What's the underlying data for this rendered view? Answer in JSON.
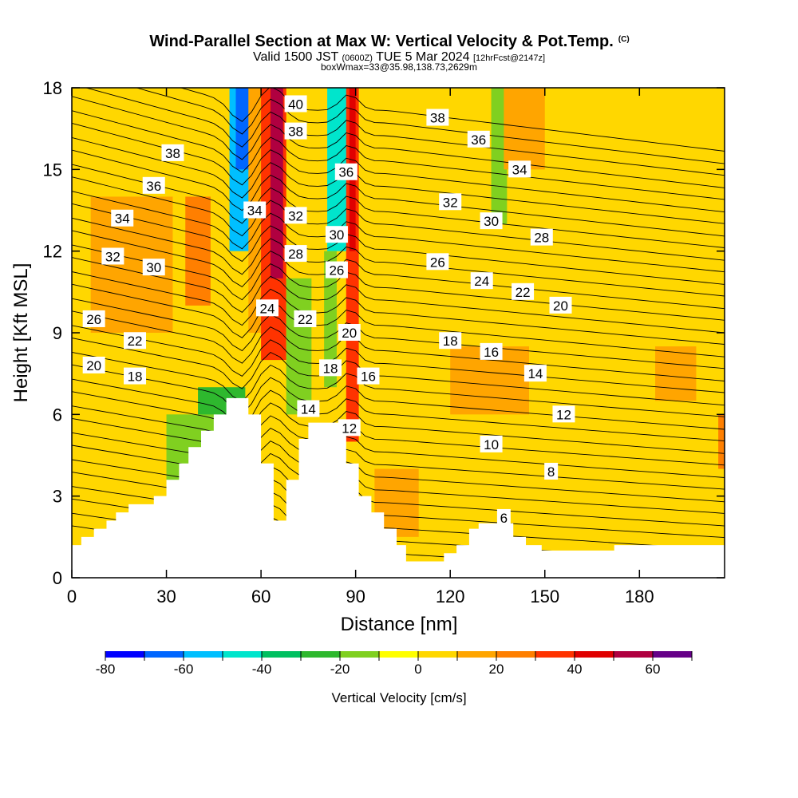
{
  "title": {
    "main": "Wind-Parallel Section at Max W: Vertical Velocity & Pot.Temp.",
    "copyright": "(C)",
    "valid_prefix": "Valid 1500 JST",
    "utc": "(0600Z)",
    "valid_date": "TUE 5 Mar 2024",
    "forecast": "[12hrFcst@2147z]",
    "box_info": "boxWmax=33@35.98,138.73,2629m"
  },
  "chart_data": {
    "type": "heatmap",
    "xlabel": "Distance [nm]",
    "ylabel": "Height [Kft MSL]",
    "xlim": [
      0,
      207
    ],
    "ylim": [
      0,
      18
    ],
    "xticks": [
      0,
      30,
      60,
      90,
      120,
      150,
      180
    ],
    "yticks": [
      0,
      3,
      6,
      9,
      12,
      15,
      18
    ],
    "colorbar": {
      "label": "Vertical Velocity [cm/s]",
      "levels": [
        -80,
        -70,
        -60,
        -50,
        -40,
        -30,
        -20,
        -10,
        0,
        10,
        20,
        30,
        40,
        50,
        60,
        70
      ],
      "colors": [
        "#0000ff",
        "#0066ff",
        "#00bfff",
        "#00e5cc",
        "#00c060",
        "#2eb82e",
        "#80d020",
        "#ffff00",
        "#ffd700",
        "#ffa500",
        "#ff7f00",
        "#ff3300",
        "#e00000",
        "#b00040",
        "#660088"
      ],
      "tick_values": [
        -80,
        -60,
        -40,
        -20,
        0,
        20,
        40,
        60
      ]
    },
    "terrain_profile": {
      "x": [
        0,
        3,
        3,
        7,
        7,
        11,
        11,
        14,
        14,
        18,
        18,
        26,
        26,
        30,
        30,
        34,
        34,
        37,
        37,
        41,
        41,
        45,
        45,
        49,
        49,
        53,
        53,
        56,
        56,
        60,
        60,
        64,
        64,
        68,
        68,
        72,
        72,
        75,
        75,
        80,
        80,
        87,
        87,
        91,
        91,
        95,
        95,
        99,
        99,
        103,
        103,
        106,
        106,
        110,
        110,
        118,
        118,
        122,
        122,
        126,
        126,
        129,
        129,
        133,
        133,
        140,
        140,
        144,
        144,
        149,
        149,
        153,
        153,
        172,
        172,
        207
      ],
      "y": [
        1.2,
        1.2,
        1.5,
        1.5,
        1.8,
        1.8,
        2.1,
        2.1,
        2.4,
        2.4,
        2.7,
        2.7,
        3.0,
        3.0,
        3.6,
        3.6,
        4.2,
        4.2,
        4.8,
        4.8,
        5.4,
        5.4,
        6.0,
        6.0,
        6.6,
        6.6,
        6.6,
        6.6,
        6.0,
        6.0,
        4.2,
        4.2,
        2.1,
        2.1,
        3.6,
        3.6,
        5.1,
        5.1,
        5.7,
        5.7,
        5.7,
        5.7,
        4.2,
        4.2,
        3.0,
        3.0,
        2.4,
        2.4,
        1.8,
        1.8,
        1.2,
        1.2,
        0.6,
        0.6,
        0.6,
        0.6,
        0.9,
        0.9,
        1.2,
        1.2,
        1.8,
        1.8,
        2.0,
        2.0,
        2.0,
        2.0,
        1.5,
        1.5,
        1.2,
        1.2,
        1.0,
        1.0,
        1.0,
        1.0,
        1.2,
        1.2
      ]
    },
    "velocity_bands": [
      {
        "x0": 50,
        "x1": 58,
        "y0": 12,
        "y1": 18,
        "value": -55
      },
      {
        "x0": 52,
        "x1": 57,
        "y0": 15,
        "y1": 18,
        "value": -62
      },
      {
        "x0": 56,
        "x1": 61,
        "y0": 9,
        "y1": 18,
        "value": 12
      },
      {
        "x0": 60,
        "x1": 68,
        "y0": 8,
        "y1": 18,
        "value": 35
      },
      {
        "x0": 63,
        "x1": 67,
        "y0": 11,
        "y1": 18,
        "value": 55
      },
      {
        "x0": 81,
        "x1": 88,
        "y0": 12,
        "y1": 18,
        "value": -45
      },
      {
        "x0": 80,
        "x1": 84,
        "y0": 7,
        "y1": 12,
        "value": -15
      },
      {
        "x0": 87,
        "x1": 91,
        "y0": 5,
        "y1": 18,
        "value": 30
      },
      {
        "x0": 88,
        "x1": 90,
        "y0": 12,
        "y1": 18,
        "value": 45
      },
      {
        "x0": 40,
        "x1": 55,
        "y0": 3,
        "y1": 7,
        "value": -30
      },
      {
        "x0": 30,
        "x1": 46,
        "y0": 2.7,
        "y1": 6,
        "value": -15
      },
      {
        "x0": 68,
        "x1": 76,
        "y0": 6,
        "y1": 11,
        "value": -12
      },
      {
        "x0": 133,
        "x1": 138,
        "y0": 13,
        "y1": 18,
        "value": -12
      },
      {
        "x0": 6,
        "x1": 32,
        "y0": 9,
        "y1": 14,
        "value": 12
      },
      {
        "x0": 36,
        "x1": 44,
        "y0": 10,
        "y1": 14,
        "value": 20
      },
      {
        "x0": 96,
        "x1": 110,
        "y0": 1.5,
        "y1": 4,
        "value": 15
      },
      {
        "x0": 120,
        "x1": 145,
        "y0": 6,
        "y1": 8.5,
        "value": 15
      },
      {
        "x0": 137,
        "x1": 150,
        "y0": 15,
        "y1": 18,
        "value": 18
      },
      {
        "x0": 205,
        "x1": 207,
        "y0": 3.5,
        "y1": 6,
        "value": 25
      },
      {
        "x0": 160,
        "x1": 207,
        "y0": 1.2,
        "y1": 4,
        "value": 5
      },
      {
        "x0": 185,
        "x1": 198,
        "y0": 6.5,
        "y1": 8.5,
        "value": 10
      }
    ],
    "isentropes": [
      6,
      8,
      10,
      12,
      14,
      16,
      18,
      20,
      22,
      24,
      26,
      28,
      30,
      32,
      34,
      36,
      38,
      40
    ],
    "contour_labels": [
      {
        "text": "40",
        "x": 71,
        "y": 17.4
      },
      {
        "text": "38",
        "x": 71,
        "y": 16.4
      },
      {
        "text": "38",
        "x": 32,
        "y": 15.6
      },
      {
        "text": "38",
        "x": 116,
        "y": 16.9
      },
      {
        "text": "36",
        "x": 26,
        "y": 14.4
      },
      {
        "text": "36",
        "x": 87,
        "y": 14.9
      },
      {
        "text": "36",
        "x": 129,
        "y": 16.1
      },
      {
        "text": "34",
        "x": 16,
        "y": 13.2
      },
      {
        "text": "34",
        "x": 58,
        "y": 13.5
      },
      {
        "text": "34",
        "x": 142,
        "y": 15.0
      },
      {
        "text": "32",
        "x": 13,
        "y": 11.8
      },
      {
        "text": "32",
        "x": 71,
        "y": 13.3
      },
      {
        "text": "32",
        "x": 120,
        "y": 13.8
      },
      {
        "text": "30",
        "x": 26,
        "y": 11.4
      },
      {
        "text": "30",
        "x": 84,
        "y": 12.6
      },
      {
        "text": "30",
        "x": 133,
        "y": 13.1
      },
      {
        "text": "28",
        "x": 71,
        "y": 11.9
      },
      {
        "text": "28",
        "x": 149,
        "y": 12.5
      },
      {
        "text": "26",
        "x": 7,
        "y": 9.5
      },
      {
        "text": "26",
        "x": 84,
        "y": 11.3
      },
      {
        "text": "26",
        "x": 116,
        "y": 11.6
      },
      {
        "text": "24",
        "x": 62,
        "y": 9.9
      },
      {
        "text": "24",
        "x": 130,
        "y": 10.9
      },
      {
        "text": "22",
        "x": 20,
        "y": 8.7
      },
      {
        "text": "22",
        "x": 74,
        "y": 9.5
      },
      {
        "text": "22",
        "x": 143,
        "y": 10.5
      },
      {
        "text": "20",
        "x": 7,
        "y": 7.8
      },
      {
        "text": "20",
        "x": 88,
        "y": 9.0
      },
      {
        "text": "20",
        "x": 155,
        "y": 10.0
      },
      {
        "text": "18",
        "x": 20,
        "y": 7.4
      },
      {
        "text": "18",
        "x": 82,
        "y": 7.7
      },
      {
        "text": "18",
        "x": 120,
        "y": 8.7
      },
      {
        "text": "16",
        "x": 94,
        "y": 7.4
      },
      {
        "text": "16",
        "x": 133,
        "y": 8.3
      },
      {
        "text": "14",
        "x": 75,
        "y": 6.2
      },
      {
        "text": "14",
        "x": 147,
        "y": 7.5
      },
      {
        "text": "12",
        "x": 88,
        "y": 5.5
      },
      {
        "text": "12",
        "x": 156,
        "y": 6.0
      },
      {
        "text": "10",
        "x": 133,
        "y": 4.9
      },
      {
        "text": "8",
        "x": 152,
        "y": 3.9
      },
      {
        "text": "6",
        "x": 137,
        "y": 2.2
      }
    ]
  }
}
